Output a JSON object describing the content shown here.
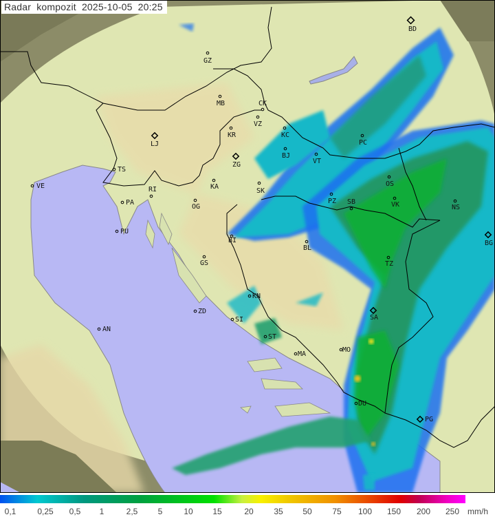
{
  "title": {
    "label": "Radar kompozit",
    "date": "2025-10-05",
    "time": "20:25"
  },
  "legend": {
    "unit": "mm/h",
    "ticks": [
      "0,1",
      "0,25",
      "0,5",
      "1",
      "2,5",
      "5",
      "10",
      "15",
      "20",
      "35",
      "50",
      "75",
      "100",
      "150",
      "200",
      "250"
    ]
  },
  "cities": [
    "BD",
    "GZ",
    "MB",
    "CK",
    "VZ",
    "KR",
    "KC",
    "LJ",
    "BJ",
    "PC",
    "VT",
    "ZG",
    "TS",
    "VE",
    "SK",
    "KA",
    "RI",
    "OS",
    "PA",
    "OG",
    "PZ",
    "SB",
    "VK",
    "NS",
    "PU",
    "BI",
    "BG",
    "BL",
    "GS",
    "TZ",
    "ZD",
    "KN",
    "SA",
    "AN",
    "SI",
    "ST",
    "MO",
    "MA",
    "DU",
    "PG"
  ],
  "colors": {
    "sea": "#b8b8f4",
    "land": "#dde8b4",
    "out_of_range": "#8a8a66",
    "border": "#000000"
  }
}
